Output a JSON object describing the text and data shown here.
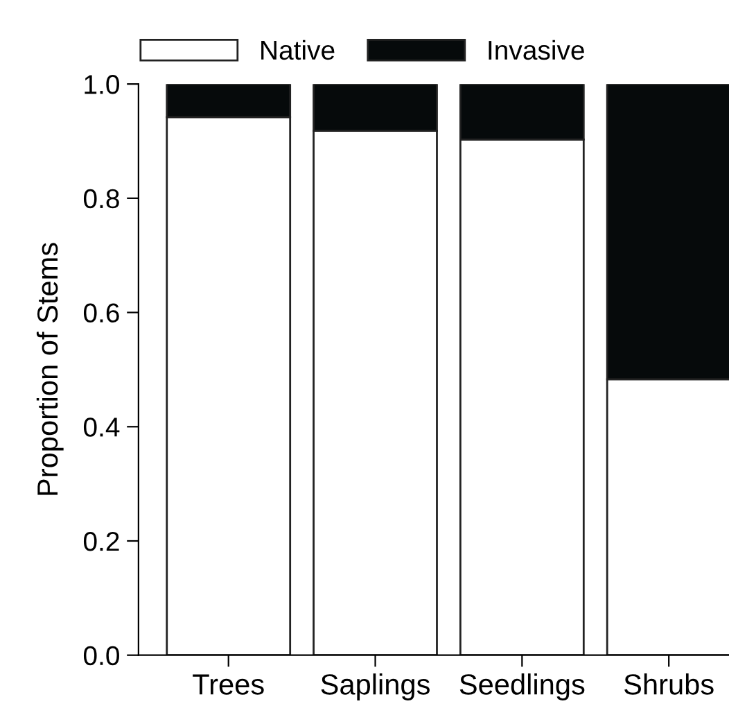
{
  "chart_data": {
    "type": "bar",
    "stacked": true,
    "ylabel": "Proportion of Stems",
    "categories": [
      "Trees",
      "Saplings",
      "Seedlings",
      "Shrubs"
    ],
    "series": [
      {
        "name": "Native",
        "color": "#ffffff",
        "values": [
          0.942,
          0.918,
          0.903,
          0.483
        ]
      },
      {
        "name": "Invasive",
        "color": "#060a0b",
        "values": [
          0.058,
          0.082,
          0.097,
          0.517
        ]
      }
    ],
    "ylim": [
      0,
      1.0
    ],
    "yticks": [
      {
        "value": 0,
        "label": "0.0"
      },
      {
        "value": 0.2,
        "label": "0.2"
      },
      {
        "value": 0.4,
        "label": "0.4"
      },
      {
        "value": 0.6,
        "label": "0.6"
      },
      {
        "value": 0.8,
        "label": "0.8"
      },
      {
        "value": 1.0,
        "label": "1.0"
      }
    ],
    "grid": false,
    "legend": "top"
  }
}
